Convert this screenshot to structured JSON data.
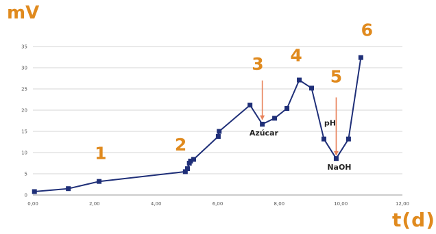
{
  "chart_data": {
    "type": "line",
    "xlabel": "t(d)",
    "ylabel": "mV",
    "xlim": [
      0,
      12
    ],
    "ylim": [
      0,
      35
    ],
    "x_ticks": [
      "0,00",
      "2,00",
      "4,00",
      "6,00",
      "8,00",
      "10,00",
      "12,00"
    ],
    "y_ticks": [
      "0",
      "5",
      "10",
      "15",
      "20",
      "25",
      "30",
      "35"
    ],
    "grid": "horizontal",
    "series": [
      {
        "color": "#1f2f78",
        "points": [
          [
            0.05,
            0.8
          ],
          [
            1.15,
            1.5
          ],
          [
            2.15,
            3.2
          ],
          [
            4.95,
            5.5
          ],
          [
            5.02,
            6.2
          ],
          [
            5.08,
            7.5
          ],
          [
            5.12,
            8.0
          ],
          [
            5.22,
            8.4
          ],
          [
            6.02,
            13.8
          ],
          [
            6.05,
            15.0
          ],
          [
            7.05,
            21.2
          ],
          [
            7.45,
            16.7
          ],
          [
            7.85,
            18.1
          ],
          [
            8.25,
            20.4
          ],
          [
            8.65,
            27.1
          ],
          [
            9.05,
            25.2
          ],
          [
            9.45,
            13.2
          ],
          [
            9.85,
            8.6
          ],
          [
            10.25,
            13.2
          ],
          [
            10.65,
            32.4
          ]
        ]
      }
    ],
    "markers": [
      {
        "text": "1",
        "x": 2.2,
        "y": 8.5
      },
      {
        "text": "2",
        "x": 4.8,
        "y": 10.5
      },
      {
        "text": "3",
        "x": 7.3,
        "y": 29.5
      },
      {
        "text": "4",
        "x": 8.55,
        "y": 31.5
      },
      {
        "text": "5",
        "x": 9.85,
        "y": 26.5
      },
      {
        "text": "6",
        "x": 10.85,
        "y": 37.5
      }
    ],
    "arrows": [
      {
        "x": 7.45,
        "y_from": 27.0,
        "y_to": 17.8
      },
      {
        "x": 9.85,
        "y_from": 23.0,
        "y_to": 9.4
      }
    ],
    "annotations": [
      {
        "text": "Azúcar",
        "x": 7.5,
        "y": 14.0
      },
      {
        "text": "pH",
        "x": 9.65,
        "y": 16.4
      },
      {
        "text": "NaOH",
        "x": 9.95,
        "y": 6.0
      }
    ]
  }
}
